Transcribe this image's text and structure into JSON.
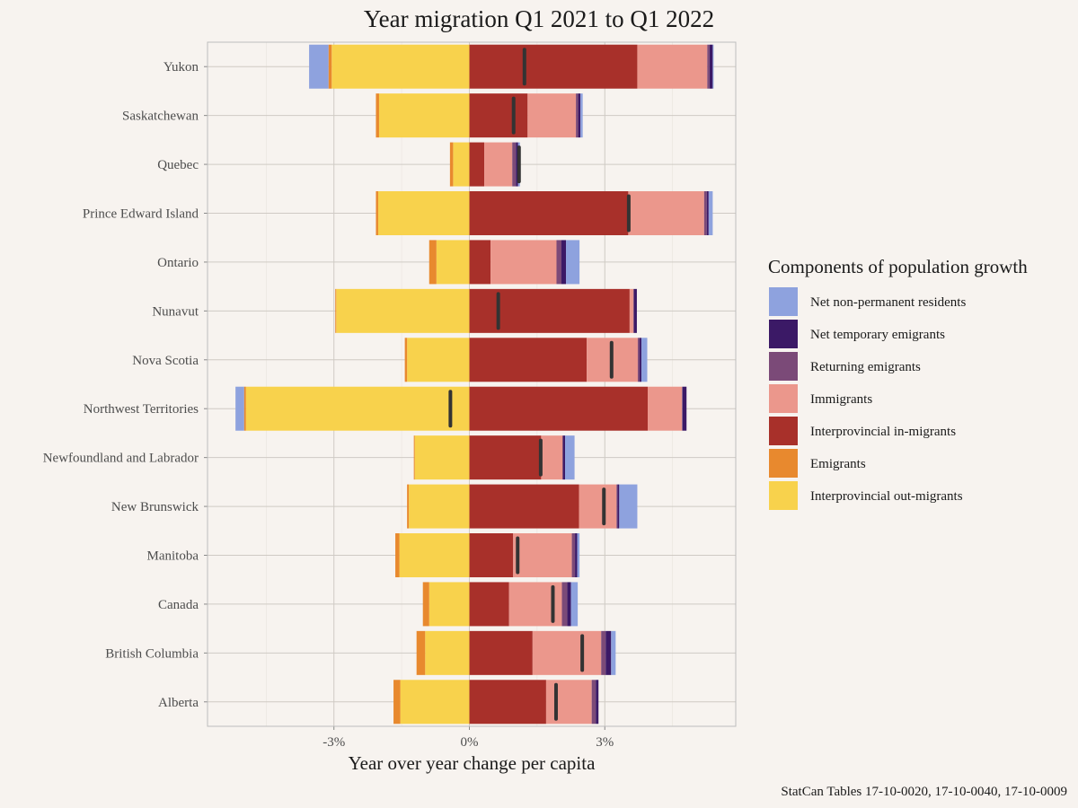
{
  "chart_data": {
    "type": "bar",
    "orientation": "horizontal",
    "stacked": "diverging",
    "title": "Year migration Q1 2021 to Q1 2022",
    "xlabel": "Year over year change per capita",
    "ylabel": "",
    "caption": "StatCan Tables 17-10-0020, 17-10-0040, 17-10-0009",
    "xlim": [
      -5.8,
      5.9
    ],
    "x_ticks": [
      -3,
      0,
      3
    ],
    "x_tick_labels": [
      "-3%",
      "0%",
      "3%"
    ],
    "grid": true,
    "legend_position": "right",
    "legend_title": "Components of population growth",
    "legend": [
      {
        "name": "Net non-permanent residents",
        "color": "#8ea2de"
      },
      {
        "name": "Net temporary emigrants",
        "color": "#3b1966"
      },
      {
        "name": "Returning emigrants",
        "color": "#7b4a78"
      },
      {
        "name": "Immigrants",
        "color": "#eb978c"
      },
      {
        "name": "Interprovincial in-migrants",
        "color": "#a8302a"
      },
      {
        "name": "Emigrants",
        "color": "#e8892e"
      },
      {
        "name": "Interprovincial out-migrants",
        "color": "#f8d24c"
      }
    ],
    "categories": [
      "Yukon",
      "Saskatchewan",
      "Quebec",
      "Prince Edward Island",
      "Ontario",
      "Nunavut",
      "Nova Scotia",
      "Northwest Territories",
      "Newfoundland and Labrador",
      "New Brunswick",
      "Manitoba",
      "Canada",
      "British Columbia",
      "Alberta"
    ],
    "positive_series": [
      {
        "name": "Interprovincial in-migrants",
        "values": [
          3.72,
          1.29,
          0.33,
          3.52,
          0.47,
          3.55,
          2.6,
          3.95,
          1.59,
          2.43,
          0.97,
          0.88,
          1.4,
          1.7
        ]
      },
      {
        "name": "Immigrants",
        "values": [
          1.55,
          1.07,
          0.62,
          1.68,
          1.46,
          0.08,
          1.13,
          0.76,
          0.47,
          0.83,
          1.3,
          1.17,
          1.52,
          1.01
        ]
      },
      {
        "name": "Returning emigrants",
        "values": [
          0.05,
          0.05,
          0.08,
          0.06,
          0.11,
          0.02,
          0.04,
          0.01,
          0.02,
          0.02,
          0.07,
          0.12,
          0.1,
          0.09
        ]
      },
      {
        "name": "Net temporary emigrants",
        "values": [
          0.07,
          0.05,
          0.05,
          0.04,
          0.1,
          0.06,
          0.04,
          0.09,
          0.04,
          0.04,
          0.05,
          0.08,
          0.12,
          0.06
        ]
      },
      {
        "name": "Net non-permanent residents",
        "values": [
          0.02,
          0.05,
          0.04,
          0.09,
          0.3,
          0.0,
          0.13,
          0.0,
          0.21,
          0.4,
          0.05,
          0.15,
          0.1,
          0.0
        ]
      }
    ],
    "negative_series": [
      {
        "name": "Interprovincial out-migrants",
        "values": [
          -3.05,
          -2.0,
          -0.36,
          -2.02,
          -0.73,
          -2.95,
          -1.38,
          -4.95,
          -1.21,
          -1.34,
          -1.55,
          -0.89,
          -0.98,
          -1.53
        ]
      },
      {
        "name": "Emigrants",
        "values": [
          -0.07,
          -0.07,
          -0.07,
          -0.05,
          -0.16,
          -0.02,
          -0.05,
          -0.04,
          -0.02,
          -0.04,
          -0.09,
          -0.14,
          -0.19,
          -0.15
        ]
      },
      {
        "name": "Net non-permanent residents",
        "values": [
          -0.43,
          0.0,
          0.0,
          0.0,
          0.0,
          0.0,
          0.0,
          -0.19,
          0.0,
          0.0,
          0.0,
          0.0,
          0.0,
          0.0
        ]
      }
    ],
    "net_change": [
      1.22,
      0.98,
      1.1,
      3.53,
      0.0,
      0.64,
      3.15,
      -0.42,
      1.58,
      2.98,
      1.07,
      1.85,
      2.5,
      1.92
    ]
  }
}
